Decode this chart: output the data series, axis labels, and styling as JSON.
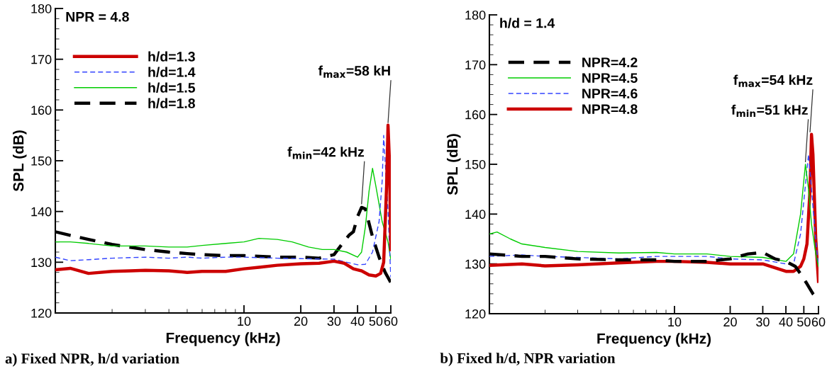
{
  "chart_data": [
    {
      "type": "line",
      "title": "a) Fixed NPR, h/d variation",
      "xlabel": "Frequency (kHz)",
      "ylabel": "SPL (dB)",
      "log": "x",
      "xlim": [
        1,
        60
      ],
      "xticks": [
        10,
        20,
        30,
        40,
        50,
        60
      ],
      "ylim": [
        120,
        180
      ],
      "yticks": [
        120,
        130,
        140,
        150,
        160,
        170,
        180
      ],
      "grid": false,
      "legend": "top left",
      "marker": "none",
      "x": [
        1,
        1.2,
        1.5,
        2,
        2.5,
        3,
        4,
        5,
        6,
        8,
        10,
        12,
        15,
        20,
        25,
        30,
        34,
        38,
        42,
        46,
        50,
        53,
        55,
        57,
        58,
        59,
        60
      ],
      "annotations": [
        "NPR = 4.8",
        {
          "text": "f$_{min}$=42 kHz",
          "x": 42,
          "y": 141
        },
        {
          "text": "f$_{max}$=58 kH",
          "x": 58,
          "y": 157
        }
      ],
      "series": [
        {
          "name": "h/d=1.3",
          "color": "#cc0000",
          "line_style": "solid",
          "values": [
            128.5,
            128.8,
            127.8,
            128.2,
            128.3,
            128.4,
            128.3,
            128,
            128.2,
            128.2,
            128.7,
            129,
            129.4,
            129.7,
            129.8,
            130.2,
            129.8,
            128.7,
            128.3,
            127.5,
            127.3,
            127.8,
            130,
            145,
            157,
            150,
            132.5
          ]
        },
        {
          "name": "h/d=1.4",
          "color": "#3344ff",
          "line_style": "dashed",
          "x": [
            1,
            1.2,
            1.5,
            2,
            3,
            4,
            5,
            6,
            8,
            10,
            15,
            20,
            30,
            35,
            40,
            44,
            48,
            52,
            54,
            55,
            56,
            58,
            60
          ],
          "values": [
            131,
            130.3,
            130.5,
            130.8,
            131,
            130.8,
            131,
            130.8,
            131,
            131,
            130.8,
            130.7,
            130.6,
            130,
            129.5,
            129.6,
            132,
            138,
            146,
            155,
            150,
            140,
            127
          ]
        },
        {
          "name": "h/d=1.5",
          "color": "#00cc00",
          "line_style": "solid",
          "x": [
            1,
            1.2,
            1.5,
            2,
            3,
            4,
            5,
            6,
            8,
            10,
            12,
            15,
            18,
            22,
            26,
            30,
            35,
            40,
            42,
            44,
            46,
            48,
            50,
            54,
            58,
            60
          ],
          "values": [
            134,
            134,
            133.7,
            133.2,
            133.2,
            133,
            133,
            133.3,
            133.7,
            134,
            134.7,
            134.5,
            134,
            133,
            132.5,
            132.5,
            132,
            131,
            132,
            137,
            144,
            148.5,
            145,
            138,
            134,
            130.5
          ]
        },
        {
          "name": "h/d=1.8",
          "color": "#000000",
          "line_style": "dashed",
          "x": [
            1,
            1.2,
            1.5,
            2,
            3,
            4,
            5,
            6,
            8,
            10,
            15,
            20,
            25,
            30,
            33,
            36,
            38,
            40,
            42,
            44,
            48,
            52,
            56,
            60
          ],
          "values": [
            136,
            135.3,
            134.5,
            133.5,
            132.5,
            132,
            131.7,
            131.5,
            131.3,
            131.3,
            131,
            131,
            130.8,
            131.5,
            133.5,
            135.3,
            136,
            139,
            140.8,
            140.5,
            135,
            131,
            128,
            126
          ]
        }
      ]
    },
    {
      "type": "line",
      "title": "b) Fixed h/d, NPR variation",
      "xlabel": "Frequency (kHz)",
      "ylabel": "SPL (dB)",
      "log": "x",
      "xlim": [
        1,
        60
      ],
      "xticks": [
        10,
        20,
        30,
        40,
        50,
        60
      ],
      "ylim": [
        120,
        180
      ],
      "yticks": [
        120,
        130,
        140,
        150,
        160,
        170,
        180
      ],
      "grid": false,
      "legend": "top left",
      "marker": "none",
      "x": [
        1,
        1.5,
        2,
        3,
        5,
        8,
        10,
        15,
        20,
        25,
        30,
        35,
        40,
        45,
        48,
        52,
        56,
        60
      ],
      "annotations": [
        "h/d = 1.4",
        {
          "text": "f$_{min}$=51 kHz",
          "x": 51,
          "y": 150
        },
        {
          "text": "f$_{max}$=54 kHz",
          "x": 54,
          "y": 156
        }
      ],
      "series": [
        {
          "name": "NPR=4.2",
          "color": "#000000",
          "line_style": "dashed",
          "values": [
            132,
            131.5,
            131.5,
            131,
            130.8,
            130.8,
            130.5,
            130.5,
            131,
            132,
            132.3,
            131,
            130.5,
            129.5,
            128,
            126,
            124,
            122.8
          ]
        },
        {
          "name": "NPR=4.5",
          "color": "#00cc00",
          "line_style": "solid",
          "x": [
            1,
            1.1,
            1.3,
            1.5,
            2,
            3,
            5,
            8,
            10,
            15,
            20,
            30,
            40,
            44,
            48,
            51,
            53,
            55,
            58,
            60
          ],
          "values": [
            136,
            136.4,
            135,
            134,
            133.3,
            132.5,
            132.2,
            132.3,
            132,
            132,
            131.5,
            131.3,
            130.5,
            132,
            140,
            150,
            145,
            138,
            132,
            129.5
          ]
        },
        {
          "name": "NPR=4.6",
          "color": "#3344ff",
          "line_style": "dashed",
          "x": [
            1,
            1.5,
            2,
            3,
            5,
            8,
            10,
            15,
            20,
            30,
            40,
            44,
            48,
            52,
            53,
            55,
            58,
            60
          ],
          "values": [
            131.5,
            131.8,
            131.5,
            131.3,
            131,
            131.5,
            131.5,
            131.5,
            131,
            130.8,
            130,
            130,
            136,
            149,
            152,
            145,
            135,
            129.5
          ]
        },
        {
          "name": "NPR=4.8",
          "color": "#cc0000",
          "line_style": "solid",
          "x": [
            1,
            1.5,
            2,
            3,
            5,
            8,
            10,
            15,
            20,
            30,
            40,
            44,
            48,
            50,
            52,
            54,
            55,
            56,
            58,
            60
          ],
          "values": [
            129.7,
            130,
            129.6,
            129.8,
            130.2,
            130.5,
            130.5,
            130.3,
            130,
            130,
            128.5,
            128.5,
            129.5,
            131,
            134,
            145,
            156,
            152,
            135,
            126.5
          ]
        }
      ]
    }
  ]
}
